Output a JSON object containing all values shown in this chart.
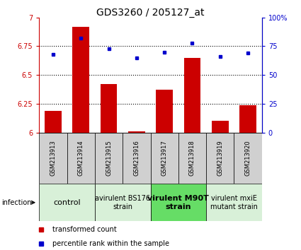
{
  "title": "GDS3260 / 205127_at",
  "samples": [
    "GSM213913",
    "GSM213914",
    "GSM213915",
    "GSM213916",
    "GSM213917",
    "GSM213918",
    "GSM213919",
    "GSM213920"
  ],
  "transformed_counts": [
    6.19,
    6.92,
    6.42,
    6.01,
    6.37,
    6.65,
    6.1,
    6.24
  ],
  "percentile_ranks": [
    68,
    82,
    73,
    65,
    70,
    78,
    66,
    69
  ],
  "ylim_left": [
    6.0,
    7.0
  ],
  "ylim_right": [
    0,
    100
  ],
  "yticks_left": [
    6.0,
    6.25,
    6.5,
    6.75,
    7.0
  ],
  "ytick_labels_left": [
    "6",
    "6.25",
    "6.5",
    "6.75",
    "7"
  ],
  "yticks_right": [
    0,
    25,
    50,
    75,
    100
  ],
  "ytick_labels_right": [
    "0",
    "25",
    "50",
    "75",
    "100%"
  ],
  "bar_color": "#cc0000",
  "dot_color": "#0000cc",
  "background_color": "#ffffff",
  "groups": [
    {
      "label": "control",
      "samples": [
        0,
        1
      ],
      "color": "#d8f0d8",
      "bold": false,
      "fontsize": 8
    },
    {
      "label": "avirulent BS176\nstrain",
      "samples": [
        2,
        3
      ],
      "color": "#d8f0d8",
      "bold": false,
      "fontsize": 7
    },
    {
      "label": "virulent M90T\nstrain",
      "samples": [
        4,
        5
      ],
      "color": "#66dd66",
      "bold": true,
      "fontsize": 8
    },
    {
      "label": "virulent mxiE\nmutant strain",
      "samples": [
        6,
        7
      ],
      "color": "#d8f0d8",
      "bold": false,
      "fontsize": 7
    }
  ],
  "legend_items": [
    {
      "color": "#cc0000",
      "label": "transformed count"
    },
    {
      "color": "#0000cc",
      "label": "percentile rank within the sample"
    }
  ],
  "bar_bottom": 6.0,
  "bar_width": 0.6,
  "title_fontsize": 10,
  "tick_fontsize": 7,
  "sample_fontsize": 6,
  "group_label_fontsize": 7,
  "legend_fontsize": 7,
  "dotted_lines": [
    6.25,
    6.5,
    6.75
  ]
}
